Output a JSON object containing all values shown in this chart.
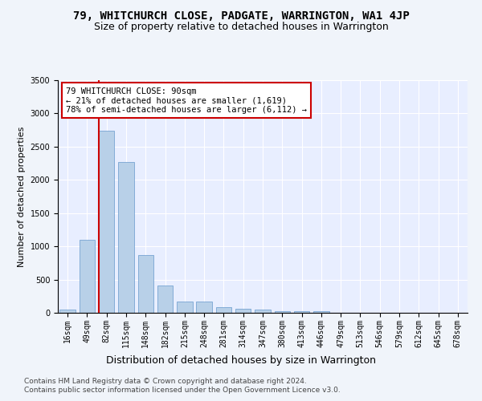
{
  "title": "79, WHITCHURCH CLOSE, PADGATE, WARRINGTON, WA1 4JP",
  "subtitle": "Size of property relative to detached houses in Warrington",
  "xlabel": "Distribution of detached houses by size in Warrington",
  "ylabel": "Number of detached properties",
  "categories": [
    "16sqm",
    "49sqm",
    "82sqm",
    "115sqm",
    "148sqm",
    "182sqm",
    "215sqm",
    "248sqm",
    "281sqm",
    "314sqm",
    "347sqm",
    "380sqm",
    "413sqm",
    "446sqm",
    "479sqm",
    "513sqm",
    "546sqm",
    "579sqm",
    "612sqm",
    "645sqm",
    "678sqm"
  ],
  "values": [
    50,
    1100,
    2740,
    2270,
    870,
    410,
    170,
    170,
    90,
    55,
    45,
    30,
    30,
    20,
    0,
    0,
    0,
    0,
    0,
    0,
    0
  ],
  "bar_color": "#b8d0e8",
  "bar_edgecolor": "#6699cc",
  "redline_index": 2,
  "annotation_text": "79 WHITCHURCH CLOSE: 90sqm\n← 21% of detached houses are smaller (1,619)\n78% of semi-detached houses are larger (6,112) →",
  "annotation_box_color": "#ffffff",
  "annotation_box_edgecolor": "#cc0000",
  "redline_color": "#cc0000",
  "ylim": [
    0,
    3500
  ],
  "yticks": [
    0,
    500,
    1000,
    1500,
    2000,
    2500,
    3000,
    3500
  ],
  "footer1": "Contains HM Land Registry data © Crown copyright and database right 2024.",
  "footer2": "Contains public sector information licensed under the Open Government Licence v3.0.",
  "background_color": "#e8eeff",
  "grid_color": "#ffffff",
  "title_fontsize": 10,
  "subtitle_fontsize": 9,
  "xlabel_fontsize": 9,
  "ylabel_fontsize": 8,
  "tick_fontsize": 7,
  "annotation_fontsize": 7.5,
  "footer_fontsize": 6.5
}
